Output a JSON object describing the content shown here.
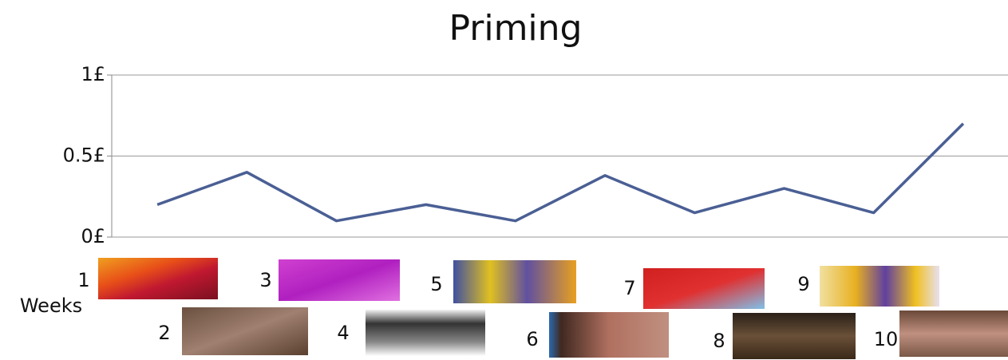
{
  "chart_data": {
    "type": "line",
    "title": "Priming",
    "x_label": "Weeks",
    "categories": [
      "1",
      "2",
      "3",
      "4",
      "5",
      "6",
      "7",
      "8",
      "9",
      "10"
    ],
    "series": [
      {
        "name": "Priming",
        "color": "#4a5f94",
        "values": [
          0.2,
          0.4,
          0.1,
          0.2,
          0.1,
          0.38,
          0.15,
          0.3,
          0.15,
          0.7
        ]
      }
    ],
    "ylim": [
      0,
      1
    ],
    "yticks": [
      {
        "value": 0,
        "label": "0£"
      },
      {
        "value": 0.5,
        "label": "0.5£"
      },
      {
        "value": 1,
        "label": "1£"
      }
    ],
    "grid": true
  }
}
